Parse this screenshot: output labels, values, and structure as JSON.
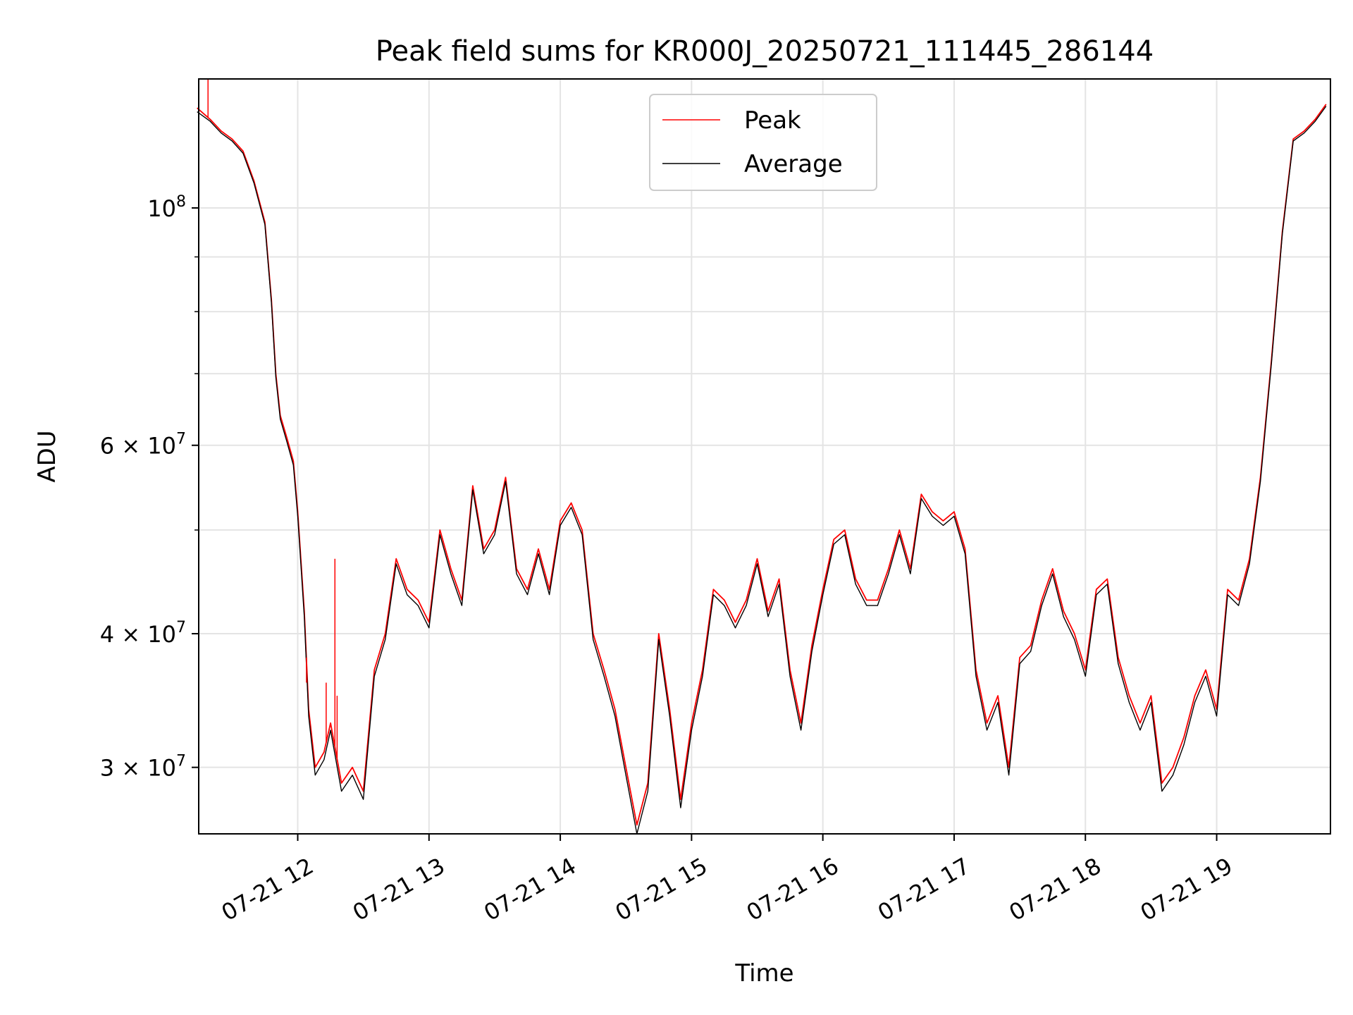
{
  "chart_data": {
    "type": "line",
    "title": "Peak field sums for KR000J_20250721_111445_286144",
    "xlabel": "Time",
    "ylabel": "ADU",
    "yscale": "log",
    "ylim": [
      26000000,
      132000000
    ],
    "xlim": [
      "2025-07-21T11:14:45",
      "2025-07-21T19:52:00"
    ],
    "grid": true,
    "legend_position": "upper center",
    "x_tick_labels": [
      "07-21 12",
      "07-21 13",
      "07-21 14",
      "07-21 15",
      "07-21 16",
      "07-21 17",
      "07-21 18",
      "07-21 19"
    ],
    "x_ticks": [
      "2025-07-21T12:00",
      "2025-07-21T13:00",
      "2025-07-21T14:00",
      "2025-07-21T15:00",
      "2025-07-21T16:00",
      "2025-07-21T17:00",
      "2025-07-21T18:00",
      "2025-07-21T19:00"
    ],
    "y_ticks": [
      {
        "value": 100000000,
        "mantissa": "",
        "exponent": "8"
      },
      {
        "value": 60000000,
        "mantissa": "6",
        "exponent": "7"
      },
      {
        "value": 40000000,
        "mantissa": "4",
        "exponent": "7"
      },
      {
        "value": 30000000,
        "mantissa": "3",
        "exponent": "7"
      }
    ],
    "y_minor_ticks": [
      50000000,
      70000000,
      80000000,
      90000000
    ],
    "x": [
      "11:14",
      "11:20",
      "11:25",
      "11:30",
      "11:35",
      "11:40",
      "11:45",
      "11:48",
      "11:50",
      "11:52",
      "11:55",
      "11:58",
      "12:00",
      "12:03",
      "12:05",
      "12:08",
      "12:12",
      "12:15",
      "12:20",
      "12:25",
      "12:30",
      "12:35",
      "12:40",
      "12:45",
      "12:50",
      "12:55",
      "13:00",
      "13:05",
      "13:10",
      "13:15",
      "13:20",
      "13:25",
      "13:30",
      "13:35",
      "13:40",
      "13:45",
      "13:50",
      "13:55",
      "14:00",
      "14:05",
      "14:10",
      "14:15",
      "14:20",
      "14:25",
      "14:30",
      "14:35",
      "14:40",
      "14:45",
      "14:50",
      "14:55",
      "15:00",
      "15:05",
      "15:10",
      "15:15",
      "15:20",
      "15:25",
      "15:30",
      "15:35",
      "15:40",
      "15:45",
      "15:50",
      "15:55",
      "16:00",
      "16:05",
      "16:10",
      "16:15",
      "16:20",
      "16:25",
      "16:30",
      "16:35",
      "16:40",
      "16:45",
      "16:50",
      "16:55",
      "17:00",
      "17:05",
      "17:10",
      "17:15",
      "17:20",
      "17:25",
      "17:30",
      "17:35",
      "17:40",
      "17:45",
      "17:50",
      "17:55",
      "18:00",
      "18:05",
      "18:10",
      "18:15",
      "18:20",
      "18:25",
      "18:30",
      "18:35",
      "18:40",
      "18:45",
      "18:50",
      "18:55",
      "19:00",
      "19:05",
      "19:10",
      "19:15",
      "19:20",
      "19:25",
      "19:30",
      "19:35",
      "19:40",
      "19:45",
      "19:50"
    ],
    "series": [
      {
        "name": "Peak",
        "color": "#ff0000",
        "values": [
          124000000,
          121000000,
          118000000,
          116000000,
          113000000,
          106000000,
          97000000,
          82000000,
          70000000,
          64000000,
          61000000,
          58000000,
          52000000,
          42000000,
          34000000,
          30000000,
          31000000,
          33000000,
          29000000,
          30000000,
          28500000,
          37000000,
          40000000,
          47000000,
          44000000,
          43000000,
          41000000,
          50000000,
          46000000,
          43000000,
          55000000,
          48000000,
          50000000,
          56000000,
          46000000,
          44000000,
          48000000,
          44000000,
          51000000,
          53000000,
          50000000,
          40000000,
          37000000,
          34000000,
          30000000,
          26500000,
          29000000,
          40000000,
          34000000,
          28000000,
          33000000,
          37000000,
          44000000,
          43000000,
          41000000,
          43000000,
          47000000,
          42000000,
          45000000,
          37000000,
          33000000,
          39000000,
          44000000,
          49000000,
          50000000,
          45000000,
          43000000,
          43000000,
          46000000,
          50000000,
          46000000,
          54000000,
          52000000,
          51000000,
          52000000,
          48000000,
          37000000,
          33000000,
          35000000,
          30000000,
          38000000,
          39000000,
          43000000,
          46000000,
          42000000,
          40000000,
          37000000,
          44000000,
          45000000,
          38000000,
          35000000,
          33000000,
          35000000,
          29000000,
          30000000,
          32000000,
          35000000,
          37000000,
          34000000,
          44000000,
          43000000,
          47000000,
          56000000,
          72000000,
          95000000,
          116000000,
          118000000,
          121000000,
          125000000
        ]
      },
      {
        "name": "Average",
        "color": "#000000",
        "values": [
          123000000,
          120500000,
          117500000,
          115500000,
          112500000,
          105500000,
          96500000,
          81500000,
          69500000,
          63500000,
          60500000,
          57500000,
          51500000,
          41500000,
          33500000,
          29500000,
          30500000,
          32500000,
          28500000,
          29500000,
          28000000,
          36500000,
          39500000,
          46500000,
          43500000,
          42500000,
          40500000,
          49500000,
          45500000,
          42500000,
          54500000,
          47500000,
          49500000,
          55500000,
          45500000,
          43500000,
          47500000,
          43500000,
          50500000,
          52500000,
          49500000,
          39500000,
          36500000,
          33500000,
          29500000,
          26000000,
          28500000,
          39500000,
          33500000,
          27500000,
          32500000,
          36500000,
          43500000,
          42500000,
          40500000,
          42500000,
          46500000,
          41500000,
          44500000,
          36500000,
          32500000,
          38500000,
          43500000,
          48500000,
          49500000,
          44500000,
          42500000,
          42500000,
          45500000,
          49500000,
          45500000,
          53500000,
          51500000,
          50500000,
          51500000,
          47500000,
          36500000,
          32500000,
          34500000,
          29500000,
          37500000,
          38500000,
          42500000,
          45500000,
          41500000,
          39500000,
          36500000,
          43500000,
          44500000,
          37500000,
          34500000,
          32500000,
          34500000,
          28500000,
          29500000,
          31500000,
          34500000,
          36500000,
          33500000,
          43500000,
          42500000,
          46500000,
          55500000,
          71500000,
          94500000,
          115500000,
          117500000,
          120500000,
          124500000
        ]
      }
    ],
    "spikes": [
      {
        "x": "11:19",
        "value": 135000000
      },
      {
        "x": "12:04",
        "value": 36000000
      },
      {
        "x": "12:13",
        "value": 36000000
      },
      {
        "x": "12:17",
        "value": 47000000
      },
      {
        "x": "12:18",
        "value": 35000000
      }
    ]
  }
}
